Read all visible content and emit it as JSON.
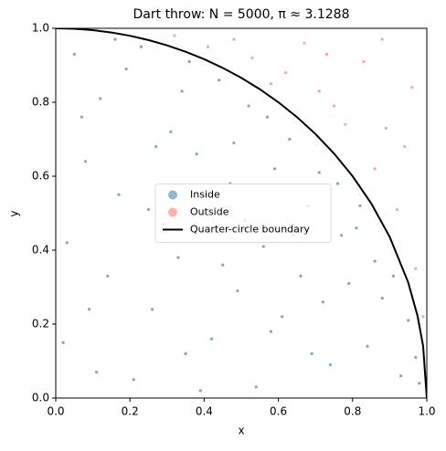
{
  "chart_data": {
    "type": "scatter",
    "title": "Dart throw: N = 5000,  π ≈ 3.1288",
    "xlabel": "x",
    "ylabel": "y",
    "xlim": [
      0,
      1
    ],
    "ylim": [
      0,
      1
    ],
    "xticks": [
      {
        "value": 0,
        "label": "0.0"
      },
      {
        "value": 0.2,
        "label": "0.2"
      },
      {
        "value": 0.4,
        "label": "0.4"
      },
      {
        "value": 0.6,
        "label": "0.6"
      },
      {
        "value": 0.8,
        "label": "0.8"
      },
      {
        "value": 1,
        "label": "1.0"
      }
    ],
    "yticks": [
      {
        "value": 0,
        "label": "0.0"
      },
      {
        "value": 0.2,
        "label": "0.2"
      },
      {
        "value": 0.4,
        "label": "0.4"
      },
      {
        "value": 0.6,
        "label": "0.6"
      },
      {
        "value": 0.8,
        "label": "0.8"
      },
      {
        "value": 1,
        "label": "1.0"
      }
    ],
    "legend": "center",
    "series": [
      {
        "name": "Inside",
        "type": "scatter",
        "color": "#4682b4",
        "x": [
          0.05,
          0.12,
          0.23,
          0.31,
          0.44,
          0.52,
          0.63,
          0.71,
          0.82,
          0.91,
          0.08,
          0.17,
          0.29,
          0.38,
          0.47,
          0.56,
          0.68,
          0.77,
          0.86,
          0.95,
          0.03,
          0.14,
          0.26,
          0.35,
          0.49,
          0.58,
          0.66,
          0.74,
          0.88,
          0.97,
          0.02,
          0.11,
          0.21,
          0.33,
          0.42,
          0.54,
          0.61,
          0.79,
          0.84,
          0.93,
          0.07,
          0.19,
          0.27,
          0.36,
          0.45,
          0.59,
          0.69,
          0.76,
          0.16,
          0.25,
          0.39,
          0.51,
          0.64,
          0.72,
          0.09,
          0.34,
          0.48,
          0.57,
          0.81,
          0.98
        ],
        "y": [
          0.93,
          0.81,
          0.95,
          0.72,
          0.86,
          0.79,
          0.7,
          0.61,
          0.52,
          0.33,
          0.64,
          0.55,
          0.47,
          0.66,
          0.58,
          0.41,
          0.52,
          0.44,
          0.37,
          0.21,
          0.42,
          0.33,
          0.24,
          0.12,
          0.29,
          0.18,
          0.33,
          0.09,
          0.27,
          0.11,
          0.15,
          0.07,
          0.05,
          0.38,
          0.16,
          0.03,
          0.22,
          0.31,
          0.14,
          0.06,
          0.76,
          0.89,
          0.68,
          0.91,
          0.36,
          0.62,
          0.12,
          0.58,
          0.97,
          0.51,
          0.02,
          0.48,
          0.44,
          0.26,
          0.24,
          0.83,
          0.69,
          0.76,
          0.46,
          0.04
        ]
      },
      {
        "name": "Outside",
        "type": "scatter",
        "color": "#fa8072",
        "x": [
          0.32,
          0.41,
          0.53,
          0.62,
          0.71,
          0.78,
          0.86,
          0.92,
          0.97,
          0.99,
          0.48,
          0.58,
          0.67,
          0.75,
          0.83,
          0.89,
          0.94,
          0.96,
          0.88,
          0.73
        ],
        "y": [
          0.98,
          0.95,
          0.92,
          0.88,
          0.83,
          0.74,
          0.62,
          0.51,
          0.35,
          0.22,
          0.97,
          0.85,
          0.96,
          0.79,
          0.91,
          0.73,
          0.68,
          0.84,
          0.97,
          0.93
        ]
      },
      {
        "name": "Quarter-circle boundary",
        "type": "line",
        "color": "#000000",
        "x": [
          0,
          0.05,
          0.1,
          0.15,
          0.2,
          0.25,
          0.3,
          0.35,
          0.4,
          0.45,
          0.5,
          0.55,
          0.6,
          0.65,
          0.7,
          0.75,
          0.8,
          0.85,
          0.9,
          0.95,
          0.975,
          0.99,
          1
        ],
        "y": [
          1,
          0.9987,
          0.995,
          0.9887,
          0.9798,
          0.9682,
          0.9539,
          0.9367,
          0.9165,
          0.893,
          0.866,
          0.8352,
          0.8,
          0.7599,
          0.7141,
          0.6614,
          0.6,
          0.5268,
          0.4359,
          0.3122,
          0.2222,
          0.1411,
          0
        ]
      }
    ]
  }
}
